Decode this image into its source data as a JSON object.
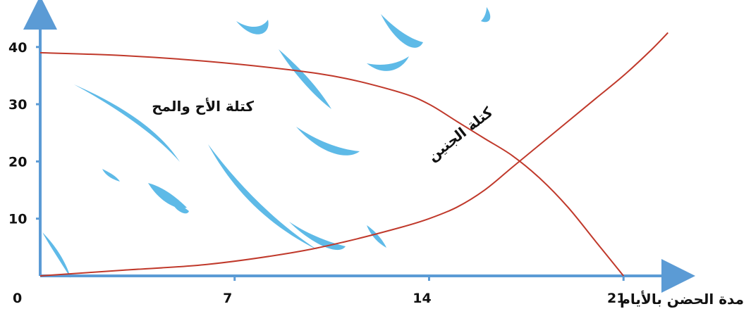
{
  "chart_data": {
    "type": "line",
    "xlabel": "مدة الحضن بالأيام",
    "ylabel": "",
    "x_ticks": [
      0,
      7,
      14,
      21
    ],
    "y_ticks": [
      10,
      20,
      30,
      40
    ],
    "xlim": [
      0,
      23
    ],
    "ylim": [
      0,
      46
    ],
    "grid": false,
    "colors": {
      "axis": "#5b9bd5",
      "curve": "#c0392b",
      "watermark": "#29a3e0"
    },
    "series": [
      {
        "name": "كتلة الأح والمح",
        "x": [
          0,
          3,
          6,
          9,
          11,
          13,
          14,
          15,
          16,
          17,
          18,
          19,
          20,
          21
        ],
        "y": [
          39,
          38.5,
          37.5,
          36,
          34.5,
          32,
          30,
          27,
          24,
          21,
          17,
          12,
          6,
          0
        ]
      },
      {
        "name": "كتلة الجنين",
        "x": [
          0,
          3,
          6,
          9,
          11,
          13,
          14,
          15,
          16,
          17,
          18,
          19,
          20,
          21,
          22,
          22.6
        ],
        "y": [
          0,
          1,
          2,
          4,
          6,
          8.5,
          10,
          12,
          15,
          19,
          23,
          27,
          31,
          35,
          39.5,
          42.5
        ]
      }
    ]
  }
}
